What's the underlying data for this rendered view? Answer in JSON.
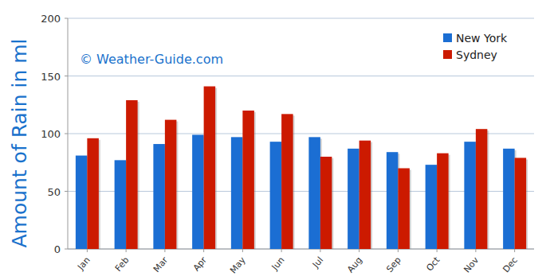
{
  "chart_data": {
    "type": "bar",
    "y_label": "Amount of Rain in ml",
    "annotations": [
      "© Weather-Guide.com"
    ],
    "categories": [
      "Jan",
      "Feb",
      "Mar",
      "Apr",
      "May",
      "Jun",
      "Jul",
      "Aug",
      "Sep",
      "Oct",
      "Nov",
      "Dec"
    ],
    "series": [
      {
        "name": "New York",
        "color": "#1b6ed3",
        "values": [
          81,
          77,
          91,
          99,
          97,
          93,
          97,
          87,
          84,
          73,
          93,
          87
        ]
      },
      {
        "name": "Sydney",
        "color": "#cc1a00",
        "values": [
          96,
          129,
          112,
          141,
          120,
          117,
          80,
          94,
          70,
          83,
          104,
          79
        ]
      }
    ],
    "ylim": [
      0,
      200
    ],
    "yticks": [
      0,
      50,
      100,
      150,
      200
    ],
    "grid": true,
    "legend": "top-right"
  }
}
